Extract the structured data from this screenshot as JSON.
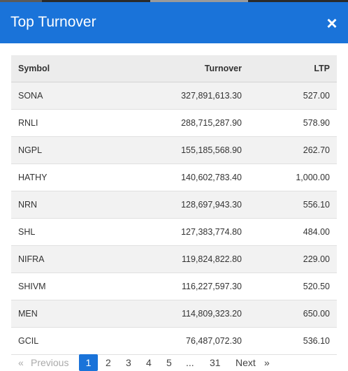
{
  "modal": {
    "title": "Top Turnover",
    "close_glyph": "×",
    "close_icon": "close-icon"
  },
  "table": {
    "headers": [
      "Symbol",
      "Turnover",
      "LTP"
    ],
    "rows": [
      [
        "SONA",
        "327,891,613.30",
        "527.00"
      ],
      [
        "RNLI",
        "288,715,287.90",
        "578.90"
      ],
      [
        "NGPL",
        "155,185,568.90",
        "262.70"
      ],
      [
        "HATHY",
        "140,602,783.40",
        "1,000.00"
      ],
      [
        "NRN",
        "128,697,943.30",
        "556.10"
      ],
      [
        "SHL",
        "127,383,774.80",
        "484.00"
      ],
      [
        "NIFRA",
        "119,824,822.80",
        "229.00"
      ],
      [
        "SHIVM",
        "116,227,597.30",
        "520.50"
      ],
      [
        "MEN",
        "114,809,323.20",
        "650.00"
      ],
      [
        "GCIL",
        "76,487,072.30",
        "536.10"
      ]
    ]
  },
  "pagination": {
    "prev_arrow": "«",
    "prev_label": "Previous",
    "pages": [
      "1",
      "2",
      "3",
      "4",
      "5"
    ],
    "ellipsis": "...",
    "last_page": "31",
    "next_label": "Next",
    "next_arrow": "»",
    "active_page": "1"
  },
  "colors": {
    "header_bg": "#1a73d9",
    "active_page_bg": "#1a73d9"
  }
}
